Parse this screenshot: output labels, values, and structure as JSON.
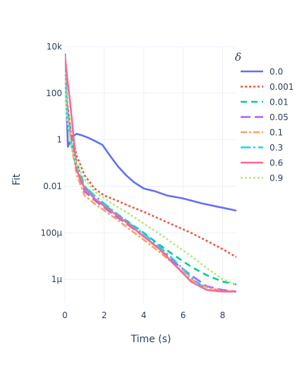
{
  "chart_data": {
    "type": "line",
    "xlabel": "Time (s)",
    "ylabel": "Fit",
    "x_scale": "linear",
    "y_scale": "log",
    "xlim": [
      0,
      8.7
    ],
    "ylim": [
      1e-07,
      10000.0
    ],
    "x_ticks": [
      0,
      2,
      4,
      6,
      8
    ],
    "x_tick_labels": [
      "0",
      "2",
      "4",
      "6",
      "8"
    ],
    "y_ticks": [
      1e-06,
      0.0001,
      0.01,
      1,
      100,
      10000
    ],
    "y_tick_labels": [
      "1μ",
      "100μ",
      "0.01",
      "1",
      "100",
      "10k"
    ],
    "grid": true,
    "legend_title": "δ",
    "legend_position": "right",
    "series": [
      {
        "name": "0.0",
        "color": "#636efa",
        "dash": "solid",
        "x": [
          0,
          0.15,
          0.35,
          0.6,
          0.9,
          1.2,
          1.5,
          1.9,
          2.3,
          2.7,
          3.1,
          3.5,
          4.0,
          4.6,
          5.2,
          6.0,
          7.0,
          8.0,
          8.7
        ],
        "y": [
          5000,
          0.5,
          1.3,
          1.8,
          1.5,
          1.2,
          0.9,
          0.6,
          0.2,
          0.07,
          0.03,
          0.015,
          0.008,
          0.006,
          0.004,
          0.003,
          0.0018,
          0.0012,
          0.0009
        ]
      },
      {
        "name": "0.001",
        "color": "#ef553b",
        "dash": "dot",
        "x": [
          0,
          0.1,
          0.3,
          0.6,
          1.0,
          1.5,
          2.0,
          2.6,
          3.2,
          4.0,
          4.8,
          5.6,
          6.4,
          7.2,
          8.0,
          8.7
        ],
        "y": [
          3000,
          50,
          2,
          0.2,
          0.03,
          0.008,
          0.004,
          0.0025,
          0.0015,
          0.0008,
          0.0004,
          0.0002,
          0.0001,
          4.5e-05,
          2e-05,
          9e-06
        ]
      },
      {
        "name": "0.01",
        "color": "#00cc96",
        "dash": "dash",
        "x": [
          0,
          0.1,
          0.3,
          0.6,
          1.0,
          1.5,
          2.0,
          2.6,
          3.2,
          4.0,
          4.8,
          5.6,
          6.4,
          7.2,
          8.0,
          8.7
        ],
        "y": [
          2500,
          40,
          1.5,
          0.1,
          0.01,
          0.003,
          0.0015,
          0.0007,
          0.0003,
          0.0001,
          3e-05,
          1e-05,
          3.5e-06,
          1.5e-06,
          8e-07,
          6e-07
        ]
      },
      {
        "name": "0.05",
        "color": "#ab63fa",
        "dash": "longdash",
        "x": [
          0,
          0.1,
          0.3,
          0.6,
          1.0,
          1.5,
          2.0,
          2.6,
          3.2,
          4.0,
          4.8,
          5.6,
          6.4,
          7.2,
          8.0,
          8.7
        ],
        "y": [
          2000,
          30,
          1,
          0.05,
          0.006,
          0.0025,
          0.0012,
          0.0005,
          0.00022,
          7e-05,
          2e-05,
          5e-06,
          1.5e-06,
          5e-07,
          3.5e-07,
          3e-07
        ]
      },
      {
        "name": "0.1",
        "color": "#ffa15a",
        "dash": "dashdot",
        "x": [
          0,
          0.1,
          0.3,
          0.6,
          1.0,
          1.5,
          2.0,
          2.6,
          3.2,
          4.0,
          4.8,
          5.6,
          6.4,
          7.2,
          8.0,
          8.7
        ],
        "y": [
          1500,
          20,
          0.8,
          0.03,
          0.004,
          0.0018,
          0.0009,
          0.0004,
          0.00016,
          5e-05,
          1.5e-05,
          4e-06,
          1e-06,
          4.5e-07,
          3.2e-07,
          3e-07
        ]
      },
      {
        "name": "0.3",
        "color": "#19d3f3",
        "dash": "longdashdot",
        "x": [
          0,
          0.1,
          0.3,
          0.6,
          1.0,
          1.5,
          2.0,
          2.6,
          3.2,
          4.0,
          4.8,
          5.6,
          6.4,
          7.2,
          8.0,
          8.7
        ],
        "y": [
          1000,
          15,
          0.7,
          0.06,
          0.01,
          0.004,
          0.0018,
          0.0007,
          0.00028,
          9e-05,
          2.5e-05,
          6e-06,
          1.2e-06,
          3.5e-07,
          3e-07,
          3e-07
        ]
      },
      {
        "name": "0.6",
        "color": "#ff6692",
        "dash": "solid",
        "x": [
          0,
          0.1,
          0.3,
          0.6,
          1.0,
          1.5,
          2.0,
          2.6,
          3.2,
          4.0,
          4.8,
          5.6,
          6.4,
          7.2,
          8.0,
          8.7
        ],
        "y": [
          4000,
          600,
          20,
          0.05,
          0.008,
          0.003,
          0.0014,
          0.0006,
          0.00025,
          7e-05,
          2e-05,
          4e-06,
          8e-07,
          3.5e-07,
          3e-07,
          3e-07
        ]
      },
      {
        "name": "0.9",
        "color": "#b6e880",
        "dash": "dot",
        "x": [
          0,
          0.1,
          0.3,
          0.6,
          1.0,
          1.5,
          2.0,
          2.6,
          3.2,
          4.0,
          4.8,
          5.6,
          6.4,
          7.2,
          8.0,
          8.7
        ],
        "y": [
          800,
          10,
          0.6,
          0.08,
          0.02,
          0.006,
          0.003,
          0.0014,
          0.0007,
          0.00025,
          9e-05,
          3e-05,
          1e-05,
          3e-06,
          1e-06,
          6e-07
        ]
      }
    ]
  }
}
